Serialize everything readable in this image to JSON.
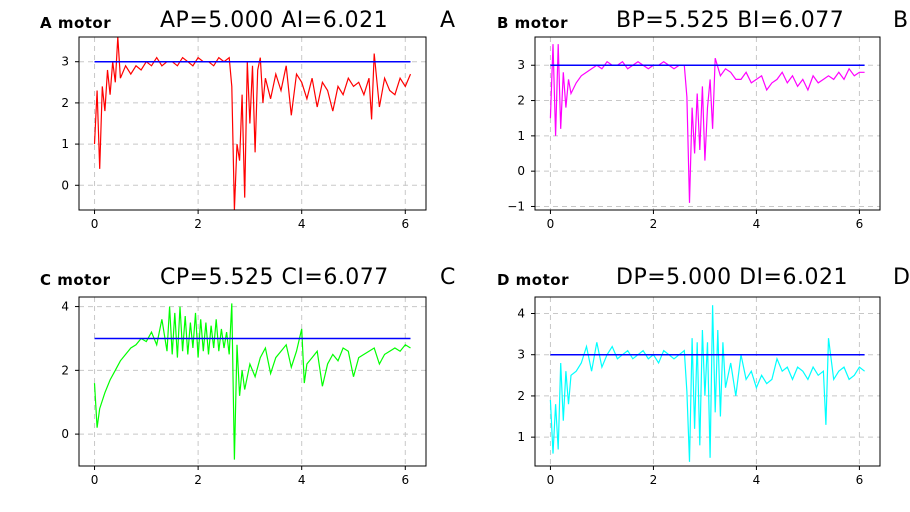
{
  "panels": [
    {
      "motor_label": "A motor",
      "params": "AP=5.000 AI=6.021",
      "tag": "A"
    },
    {
      "motor_label": "B motor",
      "params": "BP=5.525 BI=6.077",
      "tag": "B"
    },
    {
      "motor_label": "C motor",
      "params": "CP=5.525 CI=6.077",
      "tag": "C"
    },
    {
      "motor_label": "D motor",
      "params": "DP=5.000 DI=6.021",
      "tag": "D"
    }
  ],
  "chart_data": [
    {
      "type": "line",
      "title": "A motor",
      "xlim": [
        -0.3,
        6.4
      ],
      "ylim": [
        -0.6,
        3.6
      ],
      "xticks": [
        0,
        2,
        4,
        6
      ],
      "yticks": [
        0,
        1,
        2,
        3
      ],
      "grid": true,
      "setpoint": 3,
      "series": [
        {
          "color": "#ff0000",
          "x": [
            0,
            0.05,
            0.1,
            0.15,
            0.2,
            0.25,
            0.3,
            0.35,
            0.4,
            0.45,
            0.5,
            0.6,
            0.7,
            0.8,
            0.9,
            1.0,
            1.1,
            1.2,
            1.3,
            1.4,
            1.5,
            1.6,
            1.7,
            1.8,
            1.9,
            2.0,
            2.1,
            2.2,
            2.3,
            2.4,
            2.5,
            2.6,
            2.65,
            2.7,
            2.75,
            2.8,
            2.85,
            2.9,
            2.95,
            3.0,
            3.05,
            3.1,
            3.15,
            3.2,
            3.25,
            3.3,
            3.4,
            3.5,
            3.6,
            3.7,
            3.8,
            3.9,
            4.0,
            4.1,
            4.2,
            4.3,
            4.4,
            4.5,
            4.6,
            4.7,
            4.8,
            4.9,
            5.0,
            5.1,
            5.2,
            5.3,
            5.35,
            5.4,
            5.5,
            5.6,
            5.7,
            5.8,
            5.9,
            6.0,
            6.1
          ],
          "y": [
            1.0,
            2.3,
            0.4,
            2.4,
            1.8,
            2.8,
            2.2,
            3.0,
            2.5,
            3.6,
            2.6,
            2.9,
            2.7,
            2.9,
            2.8,
            3.0,
            2.9,
            3.1,
            2.9,
            3.0,
            3.0,
            2.9,
            3.1,
            3.0,
            2.9,
            3.1,
            3.0,
            3.0,
            2.9,
            3.1,
            3.0,
            3.1,
            2.4,
            -0.6,
            1.0,
            0.6,
            2.2,
            -0.3,
            3.0,
            1.5,
            2.9,
            0.8,
            2.8,
            3.1,
            2.0,
            2.6,
            2.1,
            2.7,
            2.3,
            2.9,
            1.7,
            2.7,
            2.5,
            2.1,
            2.6,
            1.9,
            2.5,
            2.3,
            1.8,
            2.4,
            2.2,
            2.6,
            2.4,
            2.5,
            2.2,
            2.6,
            1.6,
            3.2,
            1.9,
            2.6,
            2.3,
            2.2,
            2.6,
            2.4,
            2.7
          ]
        },
        {
          "color": "#0000ff",
          "x": [
            0,
            6.1
          ],
          "y": [
            3,
            3
          ]
        }
      ]
    },
    {
      "type": "line",
      "title": "B motor",
      "xlim": [
        -0.3,
        6.4
      ],
      "ylim": [
        -1.1,
        3.8
      ],
      "xticks": [
        0,
        2,
        4,
        6
      ],
      "yticks": [
        -1,
        0,
        1,
        2,
        3
      ],
      "grid": true,
      "setpoint": 3,
      "series": [
        {
          "color": "#ff00ff",
          "x": [
            0,
            0.05,
            0.1,
            0.15,
            0.2,
            0.25,
            0.3,
            0.35,
            0.4,
            0.5,
            0.6,
            0.7,
            0.8,
            0.9,
            1.0,
            1.1,
            1.2,
            1.3,
            1.4,
            1.5,
            1.6,
            1.7,
            1.8,
            1.9,
            2.0,
            2.1,
            2.2,
            2.3,
            2.4,
            2.5,
            2.6,
            2.65,
            2.7,
            2.75,
            2.8,
            2.85,
            2.9,
            2.95,
            3.0,
            3.05,
            3.1,
            3.15,
            3.2,
            3.3,
            3.4,
            3.5,
            3.6,
            3.7,
            3.8,
            3.9,
            4.0,
            4.1,
            4.2,
            4.3,
            4.4,
            4.5,
            4.6,
            4.7,
            4.8,
            4.9,
            5.0,
            5.1,
            5.2,
            5.3,
            5.4,
            5.5,
            5.6,
            5.7,
            5.8,
            5.9,
            6.0,
            6.1
          ],
          "y": [
            1.5,
            3.6,
            1.0,
            3.6,
            1.2,
            2.8,
            1.8,
            2.6,
            2.2,
            2.5,
            2.7,
            2.8,
            2.9,
            3.0,
            2.9,
            3.1,
            3.0,
            3.0,
            3.1,
            2.9,
            3.0,
            3.1,
            3.0,
            2.9,
            3.0,
            3.0,
            3.1,
            3.0,
            2.9,
            3.0,
            3.0,
            2.1,
            -0.9,
            1.8,
            0.5,
            2.2,
            0.6,
            2.4,
            0.3,
            1.8,
            2.6,
            1.2,
            3.2,
            2.7,
            2.9,
            2.8,
            2.6,
            2.6,
            2.8,
            2.5,
            2.6,
            2.7,
            2.3,
            2.5,
            2.6,
            2.8,
            2.5,
            2.7,
            2.4,
            2.6,
            2.3,
            2.7,
            2.5,
            2.6,
            2.7,
            2.6,
            2.8,
            2.6,
            2.9,
            2.7,
            2.8,
            2.8
          ]
        },
        {
          "color": "#0000ff",
          "x": [
            0,
            6.1
          ],
          "y": [
            3,
            3
          ]
        }
      ]
    },
    {
      "type": "line",
      "title": "C motor",
      "xlim": [
        -0.3,
        6.4
      ],
      "ylim": [
        -1.0,
        4.3
      ],
      "xticks": [
        0,
        2,
        4,
        6
      ],
      "yticks": [
        0,
        2,
        4
      ],
      "grid": true,
      "setpoint": 3,
      "series": [
        {
          "color": "#00ff00",
          "x": [
            0,
            0.05,
            0.1,
            0.2,
            0.3,
            0.4,
            0.5,
            0.6,
            0.7,
            0.8,
            0.9,
            1.0,
            1.1,
            1.2,
            1.3,
            1.4,
            1.45,
            1.5,
            1.55,
            1.6,
            1.65,
            1.7,
            1.75,
            1.8,
            1.85,
            1.9,
            1.95,
            2.0,
            2.05,
            2.1,
            2.15,
            2.2,
            2.25,
            2.3,
            2.35,
            2.4,
            2.45,
            2.5,
            2.55,
            2.6,
            2.65,
            2.7,
            2.75,
            2.8,
            2.85,
            2.9,
            3.0,
            3.1,
            3.2,
            3.3,
            3.4,
            3.5,
            3.6,
            3.7,
            3.8,
            3.9,
            4.0,
            4.05,
            4.1,
            4.2,
            4.3,
            4.4,
            4.5,
            4.6,
            4.7,
            4.8,
            4.9,
            5.0,
            5.1,
            5.2,
            5.3,
            5.4,
            5.5,
            5.6,
            5.7,
            5.8,
            5.9,
            6.0,
            6.1
          ],
          "y": [
            1.6,
            0.2,
            0.8,
            1.3,
            1.7,
            2.0,
            2.3,
            2.5,
            2.7,
            2.8,
            3.0,
            2.9,
            3.2,
            2.8,
            3.6,
            2.6,
            4.0,
            2.5,
            3.8,
            2.4,
            4.0,
            2.6,
            3.7,
            2.5,
            3.5,
            2.7,
            3.8,
            2.4,
            3.6,
            2.6,
            3.5,
            2.5,
            3.4,
            2.7,
            3.6,
            2.6,
            3.3,
            2.7,
            3.2,
            2.5,
            4.1,
            -0.8,
            2.8,
            1.2,
            2.0,
            1.4,
            2.2,
            1.8,
            2.4,
            2.7,
            1.9,
            2.4,
            2.6,
            2.8,
            2.1,
            2.6,
            3.3,
            1.6,
            2.2,
            2.4,
            2.6,
            1.5,
            2.2,
            2.5,
            2.3,
            2.7,
            2.6,
            1.8,
            2.4,
            2.5,
            2.6,
            2.7,
            2.2,
            2.5,
            2.6,
            2.7,
            2.6,
            2.8,
            2.7
          ]
        },
        {
          "color": "#0000ff",
          "x": [
            0,
            6.1
          ],
          "y": [
            3,
            3
          ]
        }
      ]
    },
    {
      "type": "line",
      "title": "D motor",
      "xlim": [
        -0.3,
        6.4
      ],
      "ylim": [
        0.3,
        4.4
      ],
      "xticks": [
        0,
        2,
        4,
        6
      ],
      "yticks": [
        1,
        2,
        3,
        4
      ],
      "grid": true,
      "setpoint": 3,
      "series": [
        {
          "color": "#00ffff",
          "x": [
            0,
            0.05,
            0.1,
            0.15,
            0.2,
            0.25,
            0.3,
            0.35,
            0.4,
            0.5,
            0.6,
            0.7,
            0.8,
            0.9,
            1.0,
            1.1,
            1.2,
            1.3,
            1.4,
            1.5,
            1.6,
            1.7,
            1.8,
            1.9,
            2.0,
            2.1,
            2.2,
            2.3,
            2.4,
            2.5,
            2.6,
            2.65,
            2.7,
            2.75,
            2.8,
            2.85,
            2.9,
            2.95,
            3.0,
            3.05,
            3.1,
            3.15,
            3.2,
            3.25,
            3.3,
            3.35,
            3.4,
            3.5,
            3.6,
            3.7,
            3.8,
            3.9,
            4.0,
            4.1,
            4.2,
            4.3,
            4.4,
            4.5,
            4.6,
            4.7,
            4.8,
            4.9,
            5.0,
            5.1,
            5.2,
            5.3,
            5.35,
            5.4,
            5.5,
            5.6,
            5.7,
            5.8,
            5.9,
            6.0,
            6.1
          ],
          "y": [
            1.9,
            0.6,
            1.8,
            0.7,
            2.8,
            1.4,
            2.6,
            1.8,
            2.5,
            2.6,
            2.8,
            3.2,
            2.6,
            3.3,
            2.7,
            3.0,
            3.2,
            2.9,
            3.0,
            3.1,
            2.9,
            3.0,
            3.1,
            2.9,
            3.0,
            2.8,
            3.1,
            3.0,
            2.9,
            3.0,
            3.1,
            2.1,
            0.4,
            3.4,
            1.2,
            3.3,
            0.8,
            3.6,
            2.0,
            3.3,
            0.5,
            4.2,
            1.6,
            3.6,
            1.5,
            3.3,
            2.2,
            2.8,
            2.0,
            3.0,
            2.4,
            2.6,
            2.2,
            2.5,
            2.3,
            2.4,
            2.9,
            2.6,
            2.7,
            2.4,
            2.7,
            2.6,
            2.4,
            2.7,
            2.5,
            2.6,
            1.3,
            3.4,
            2.4,
            2.6,
            2.7,
            2.4,
            2.5,
            2.7,
            2.6
          ]
        },
        {
          "color": "#0000ff",
          "x": [
            0,
            6.1
          ],
          "y": [
            3,
            3
          ]
        }
      ]
    }
  ]
}
